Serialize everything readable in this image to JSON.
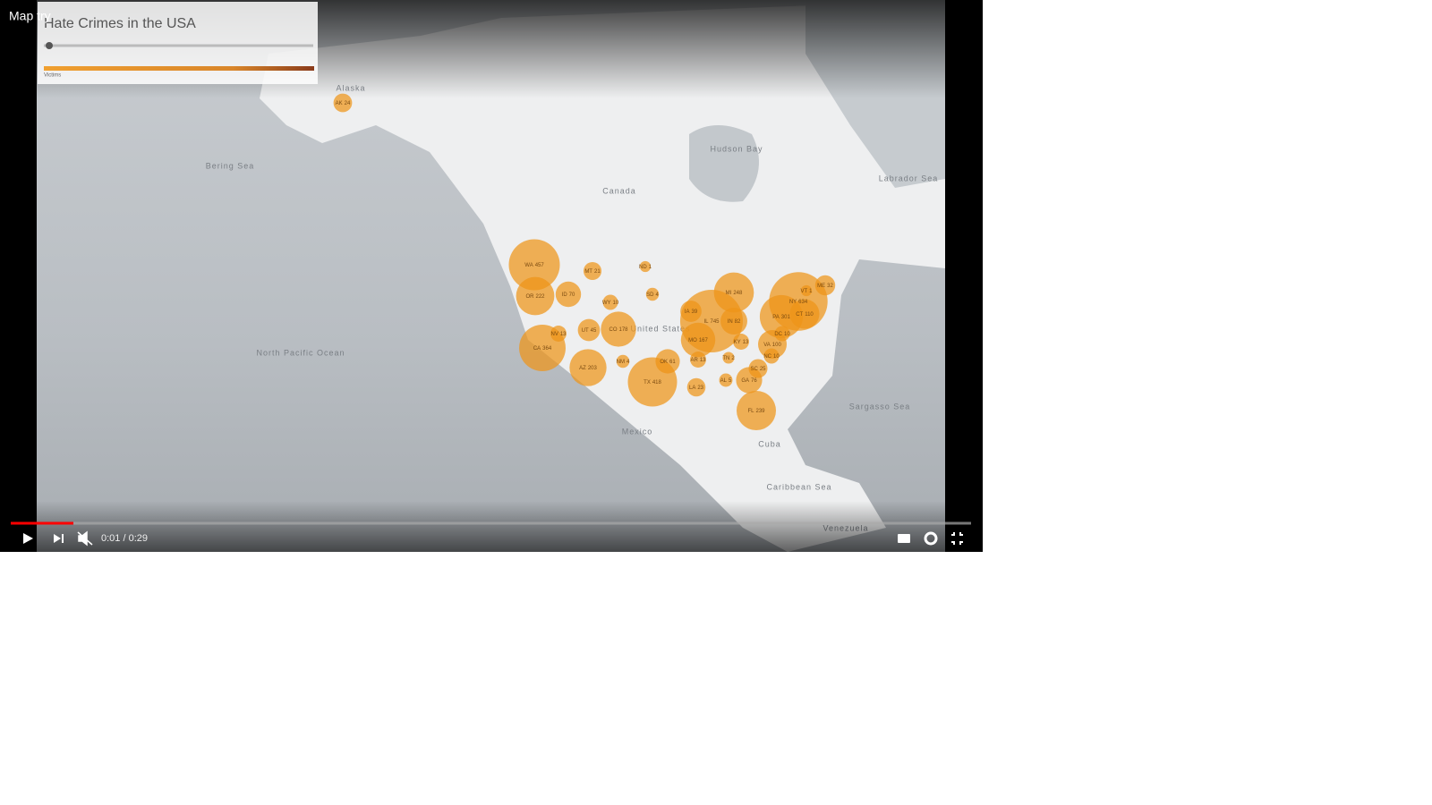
{
  "window_title": "Map try",
  "map": {
    "title": "Hate Crimes in the USA",
    "legend_label": "Victims",
    "places": [
      "Bering Sea",
      "North Pacific Ocean",
      "Hudson Bay",
      "Canada",
      "United States",
      "Mexico",
      "Cuba",
      "Sargasso Sea",
      "Caribbean Sea",
      "Venezuela",
      "Alaska",
      "Labrador Sea"
    ],
    "bubbles": [
      {
        "state": "AK",
        "value": 24
      },
      {
        "state": "WA",
        "value": 457
      },
      {
        "state": "OR",
        "value": 222
      },
      {
        "state": "MT",
        "value": 21
      },
      {
        "state": "ND",
        "value": 1
      },
      {
        "state": "ID",
        "value": 70
      },
      {
        "state": "WY",
        "value": 10
      },
      {
        "state": "SD",
        "value": 4
      },
      {
        "state": "NV",
        "value": 13
      },
      {
        "state": "UT",
        "value": 45
      },
      {
        "state": "CO",
        "value": 178
      },
      {
        "state": "CA",
        "value": 364
      },
      {
        "state": "AZ",
        "value": 203
      },
      {
        "state": "NM",
        "value": 4
      },
      {
        "state": "OK",
        "value": 61
      },
      {
        "state": "TX",
        "value": 418
      },
      {
        "state": "IA",
        "value": 39
      },
      {
        "state": "IL",
        "value": 745
      },
      {
        "state": "MI",
        "value": 248
      },
      {
        "state": "IN",
        "value": 82
      },
      {
        "state": "MO",
        "value": 167
      },
      {
        "state": "KY",
        "value": 13
      },
      {
        "state": "AR",
        "value": 13
      },
      {
        "state": "TN",
        "value": 2
      },
      {
        "state": "LA",
        "value": 23
      },
      {
        "state": "AL",
        "value": 5
      },
      {
        "state": "GA",
        "value": 76
      },
      {
        "state": "SC",
        "value": 25
      },
      {
        "state": "NC",
        "value": 10
      },
      {
        "state": "VA",
        "value": 100
      },
      {
        "state": "DC",
        "value": 10
      },
      {
        "state": "PA",
        "value": 301
      },
      {
        "state": "NY",
        "value": 634
      },
      {
        "state": "CT",
        "value": 110
      },
      {
        "state": "VT",
        "value": 1
      },
      {
        "state": "ME",
        "value": 32
      },
      {
        "state": "FL",
        "value": 239
      }
    ]
  },
  "player": {
    "time": "0:01 / 0:29"
  }
}
